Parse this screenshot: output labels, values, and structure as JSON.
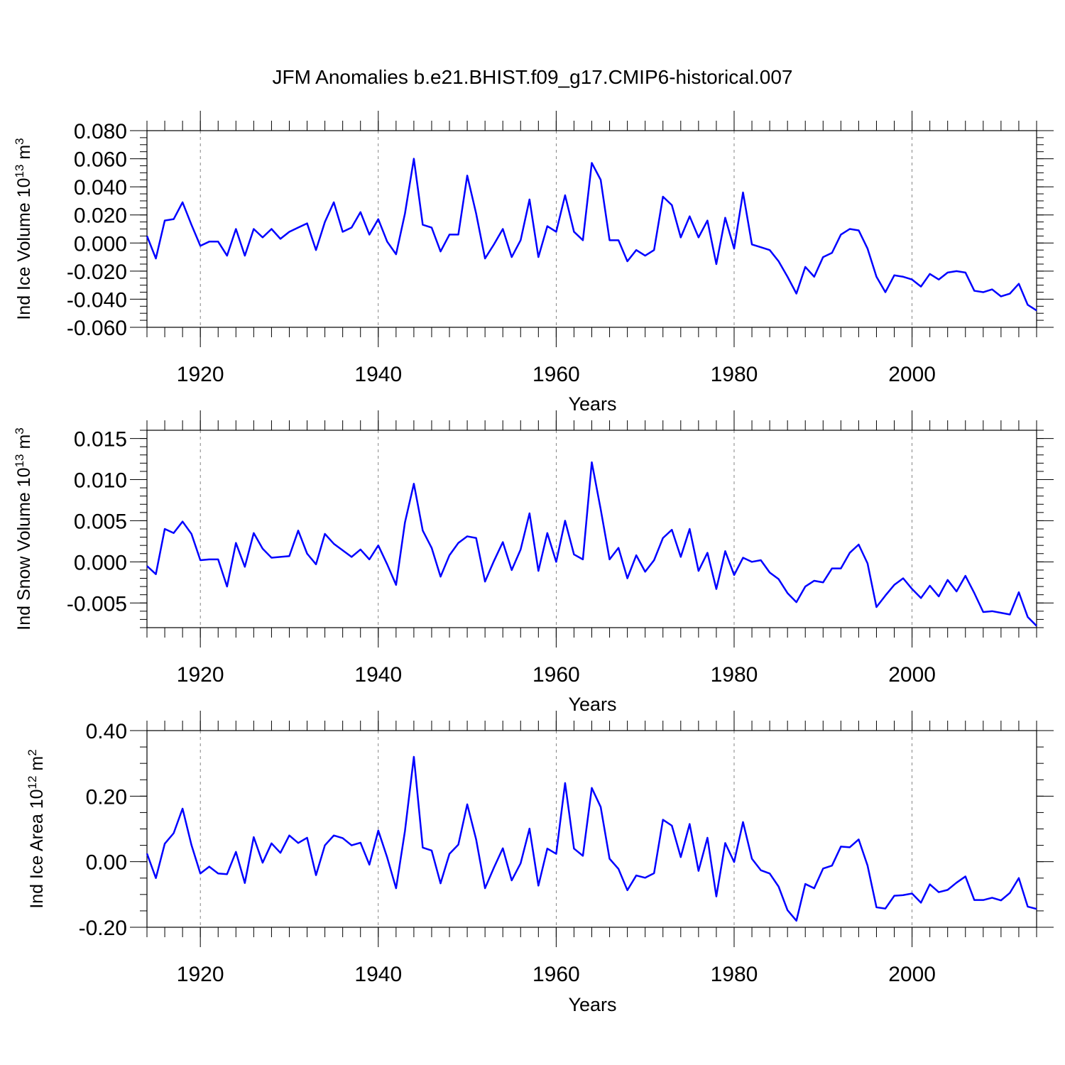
{
  "title": "JFM Anomalies b.e21.BHIST.f09_g17.CMIP6-historical.007",
  "line_color": "#0000ff",
  "chart_data": [
    {
      "type": "line",
      "ylabel": "Ind Ice Volume 10",
      "ylabel_exponent": "13",
      "ylabel_unit": " m",
      "ylabel_unit_exponent": "3",
      "xlabel": "Years",
      "xlim": [
        1914,
        2014
      ],
      "ylim": [
        -0.06,
        0.08
      ],
      "yticks": [
        -0.06,
        -0.04,
        -0.02,
        0.0,
        0.02,
        0.04,
        0.06,
        0.08
      ],
      "ytick_labels": [
        "-0.060",
        "-0.040",
        "-0.020",
        "0.000",
        "0.020",
        "0.040",
        "0.060",
        "0.080"
      ],
      "ymajor_step": 0.02,
      "yminor_step": 0.005,
      "xticks": [
        1920,
        1940,
        1960,
        1980,
        2000
      ],
      "xtick_labels": [
        "1920",
        "1940",
        "1960",
        "1980",
        "2000"
      ],
      "xminor_step": 2,
      "grid_x": true,
      "series": [
        {
          "x_start": 1914,
          "values": [
            0.005,
            -0.011,
            0.016,
            0.017,
            0.029,
            0.013,
            -0.002,
            0.001,
            0.001,
            -0.009,
            0.01,
            -0.009,
            0.01,
            0.004,
            0.01,
            0.003,
            0.008,
            0.011,
            0.014,
            -0.005,
            0.015,
            0.029,
            0.008,
            0.011,
            0.022,
            0.006,
            0.017,
            0.001,
            -0.008,
            0.021,
            0.06,
            0.013,
            0.011,
            -0.006,
            0.006,
            0.006,
            0.048,
            0.021,
            -0.011,
            -0.001,
            0.01,
            -0.01,
            0.002,
            0.031,
            -0.01,
            0.012,
            0.008,
            0.034,
            0.008,
            0.002,
            0.057,
            0.045,
            0.002,
            0.002,
            -0.013,
            -0.005,
            -0.009,
            -0.005,
            0.033,
            0.027,
            0.004,
            0.019,
            0.004,
            0.016,
            -0.015,
            0.018,
            -0.004,
            0.036,
            -0.001,
            -0.003,
            -0.005,
            -0.013,
            -0.024,
            -0.036,
            -0.017,
            -0.024,
            -0.01,
            -0.007,
            0.006,
            0.01,
            0.009,
            -0.004,
            -0.024,
            -0.035,
            -0.023,
            -0.024,
            -0.026,
            -0.031,
            -0.022,
            -0.026,
            -0.021,
            -0.02,
            -0.021,
            -0.034,
            -0.035,
            -0.033,
            -0.038,
            -0.036,
            -0.029,
            -0.044,
            -0.048
          ]
        }
      ]
    },
    {
      "type": "line",
      "ylabel": "Ind Snow Volume 10",
      "ylabel_exponent": "13",
      "ylabel_unit": " m",
      "ylabel_unit_exponent": "3",
      "xlabel": "Years",
      "xlim": [
        1914,
        2014
      ],
      "ylim": [
        -0.008,
        0.016
      ],
      "yticks": [
        -0.005,
        0.0,
        0.005,
        0.01,
        0.015
      ],
      "ytick_labels": [
        "-0.005",
        "0.000",
        "0.005",
        "0.010",
        "0.015"
      ],
      "ymajor_step": 0.005,
      "yminor_step": 0.001,
      "xticks": [
        1920,
        1940,
        1960,
        1980,
        2000
      ],
      "xtick_labels": [
        "1920",
        "1940",
        "1960",
        "1980",
        "2000"
      ],
      "xminor_step": 2,
      "grid_x": true,
      "series": [
        {
          "x_start": 1914,
          "values": [
            -0.0005,
            -0.0015,
            0.004,
            0.0035,
            0.0049,
            0.0034,
            0.0002,
            0.0003,
            0.0003,
            -0.003,
            0.0023,
            -0.0006,
            0.0035,
            0.0016,
            0.0005,
            0.0006,
            0.0007,
            0.0038,
            0.001,
            -0.0003,
            0.0034,
            0.0022,
            0.0014,
            0.0006,
            0.0015,
            0.0003,
            0.002,
            -0.0003,
            -0.0028,
            0.0048,
            0.0095,
            0.0038,
            0.0017,
            -0.0018,
            0.0008,
            0.0023,
            0.0031,
            0.0029,
            -0.0024,
            0.0001,
            0.0024,
            -0.001,
            0.0015,
            0.0059,
            -0.0011,
            0.0035,
            0.0,
            0.005,
            0.0009,
            0.0003,
            0.0121,
            0.0064,
            0.0003,
            0.0017,
            -0.002,
            0.0008,
            -0.0012,
            0.0002,
            0.0029,
            0.0039,
            0.0006,
            0.004,
            -0.0011,
            0.0011,
            -0.0033,
            0.0013,
            -0.0016,
            0.0005,
            0.0,
            0.0002,
            -0.0013,
            -0.0021,
            -0.0038,
            -0.0049,
            -0.003,
            -0.0023,
            -0.0025,
            -0.0008,
            -0.0008,
            0.0011,
            0.0021,
            -0.0002,
            -0.0055,
            -0.0041,
            -0.0028,
            -0.002,
            -0.0033,
            -0.0044,
            -0.0029,
            -0.0042,
            -0.0022,
            -0.0036,
            -0.0017,
            -0.0038,
            -0.0061,
            -0.006,
            -0.0062,
            -0.0064,
            -0.0037,
            -0.0067,
            -0.0078
          ]
        }
      ]
    },
    {
      "type": "line",
      "ylabel": "Ind Ice Area 10",
      "ylabel_exponent": "12",
      "ylabel_unit": " m",
      "ylabel_unit_exponent": "2",
      "xlabel": "Years",
      "xlim": [
        1914,
        2014
      ],
      "ylim": [
        -0.2,
        0.4
      ],
      "yticks": [
        -0.2,
        0.0,
        0.2,
        0.4
      ],
      "ytick_labels": [
        "-0.20",
        "0.00",
        "0.20",
        "0.40"
      ],
      "ymajor_step": 0.2,
      "yminor_step": 0.05,
      "xticks": [
        1920,
        1940,
        1960,
        1980,
        2000
      ],
      "xtick_labels": [
        "1920",
        "1940",
        "1960",
        "1980",
        "2000"
      ],
      "xminor_step": 2,
      "grid_x": true,
      "series": [
        {
          "x_start": 1914,
          "values": [
            0.025,
            -0.05,
            0.055,
            0.087,
            0.162,
            0.051,
            -0.036,
            -0.015,
            -0.036,
            -0.038,
            0.03,
            -0.065,
            0.075,
            -0.003,
            0.056,
            0.027,
            0.08,
            0.057,
            0.073,
            -0.041,
            0.05,
            0.08,
            0.072,
            0.05,
            0.058,
            -0.009,
            0.095,
            0.013,
            -0.081,
            0.094,
            0.32,
            0.043,
            0.034,
            -0.066,
            0.024,
            0.052,
            0.175,
            0.068,
            -0.081,
            -0.018,
            0.041,
            -0.057,
            -0.005,
            0.101,
            -0.073,
            0.04,
            0.024,
            0.24,
            0.04,
            0.018,
            0.225,
            0.167,
            0.009,
            -0.022,
            -0.087,
            -0.042,
            -0.049,
            -0.035,
            0.128,
            0.11,
            0.014,
            0.115,
            -0.028,
            0.073,
            -0.106,
            0.057,
            -0.001,
            0.121,
            0.009,
            -0.026,
            -0.036,
            -0.076,
            -0.148,
            -0.18,
            -0.068,
            -0.081,
            -0.021,
            -0.012,
            0.046,
            0.044,
            0.068,
            -0.012,
            -0.139,
            -0.143,
            -0.104,
            -0.102,
            -0.097,
            -0.125,
            -0.069,
            -0.093,
            -0.086,
            -0.064,
            -0.045,
            -0.117,
            -0.117,
            -0.11,
            -0.118,
            -0.095,
            -0.05,
            -0.137,
            -0.144
          ]
        }
      ]
    }
  ]
}
